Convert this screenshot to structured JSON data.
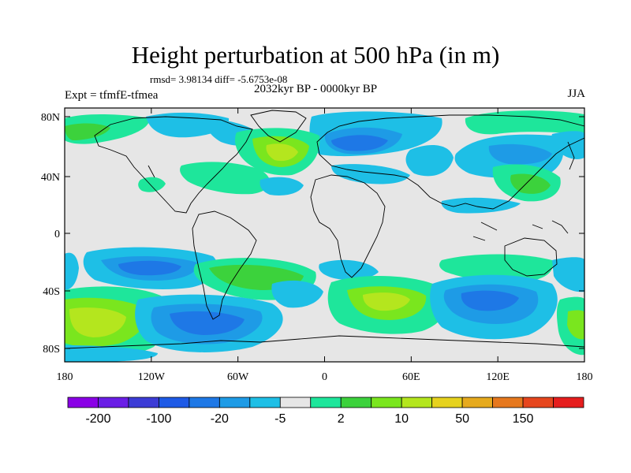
{
  "title": "Height perturbation at 500 hPa (in m)",
  "stats": "rmsd= 3.98134 diff= -5.6753e-08",
  "period": "2032kyr BP - 0000kyr BP",
  "experiment": "Expt = tfmfE-tfmea",
  "season": "JJA",
  "lat_ticks": [
    "80N",
    "40N",
    "0",
    "40S",
    "80S"
  ],
  "lon_ticks": [
    "180",
    "120W",
    "60W",
    "0",
    "60E",
    "120E",
    "180"
  ],
  "colorbar": {
    "colors": [
      "#8a00e6",
      "#6a1ee6",
      "#3c3cd6",
      "#1e5ae6",
      "#1e78e6",
      "#1e9be6",
      "#1ebfe6",
      "#e6e6e6",
      "#1ee69b",
      "#3cd23c",
      "#7ae61e",
      "#b4e61e",
      "#e6d21e",
      "#e6aa1e",
      "#e6781e",
      "#e6461e",
      "#e61e1e"
    ],
    "labels": [
      "-200",
      "-100",
      "-20",
      "-5",
      "2",
      "10",
      "50",
      "150"
    ]
  }
}
